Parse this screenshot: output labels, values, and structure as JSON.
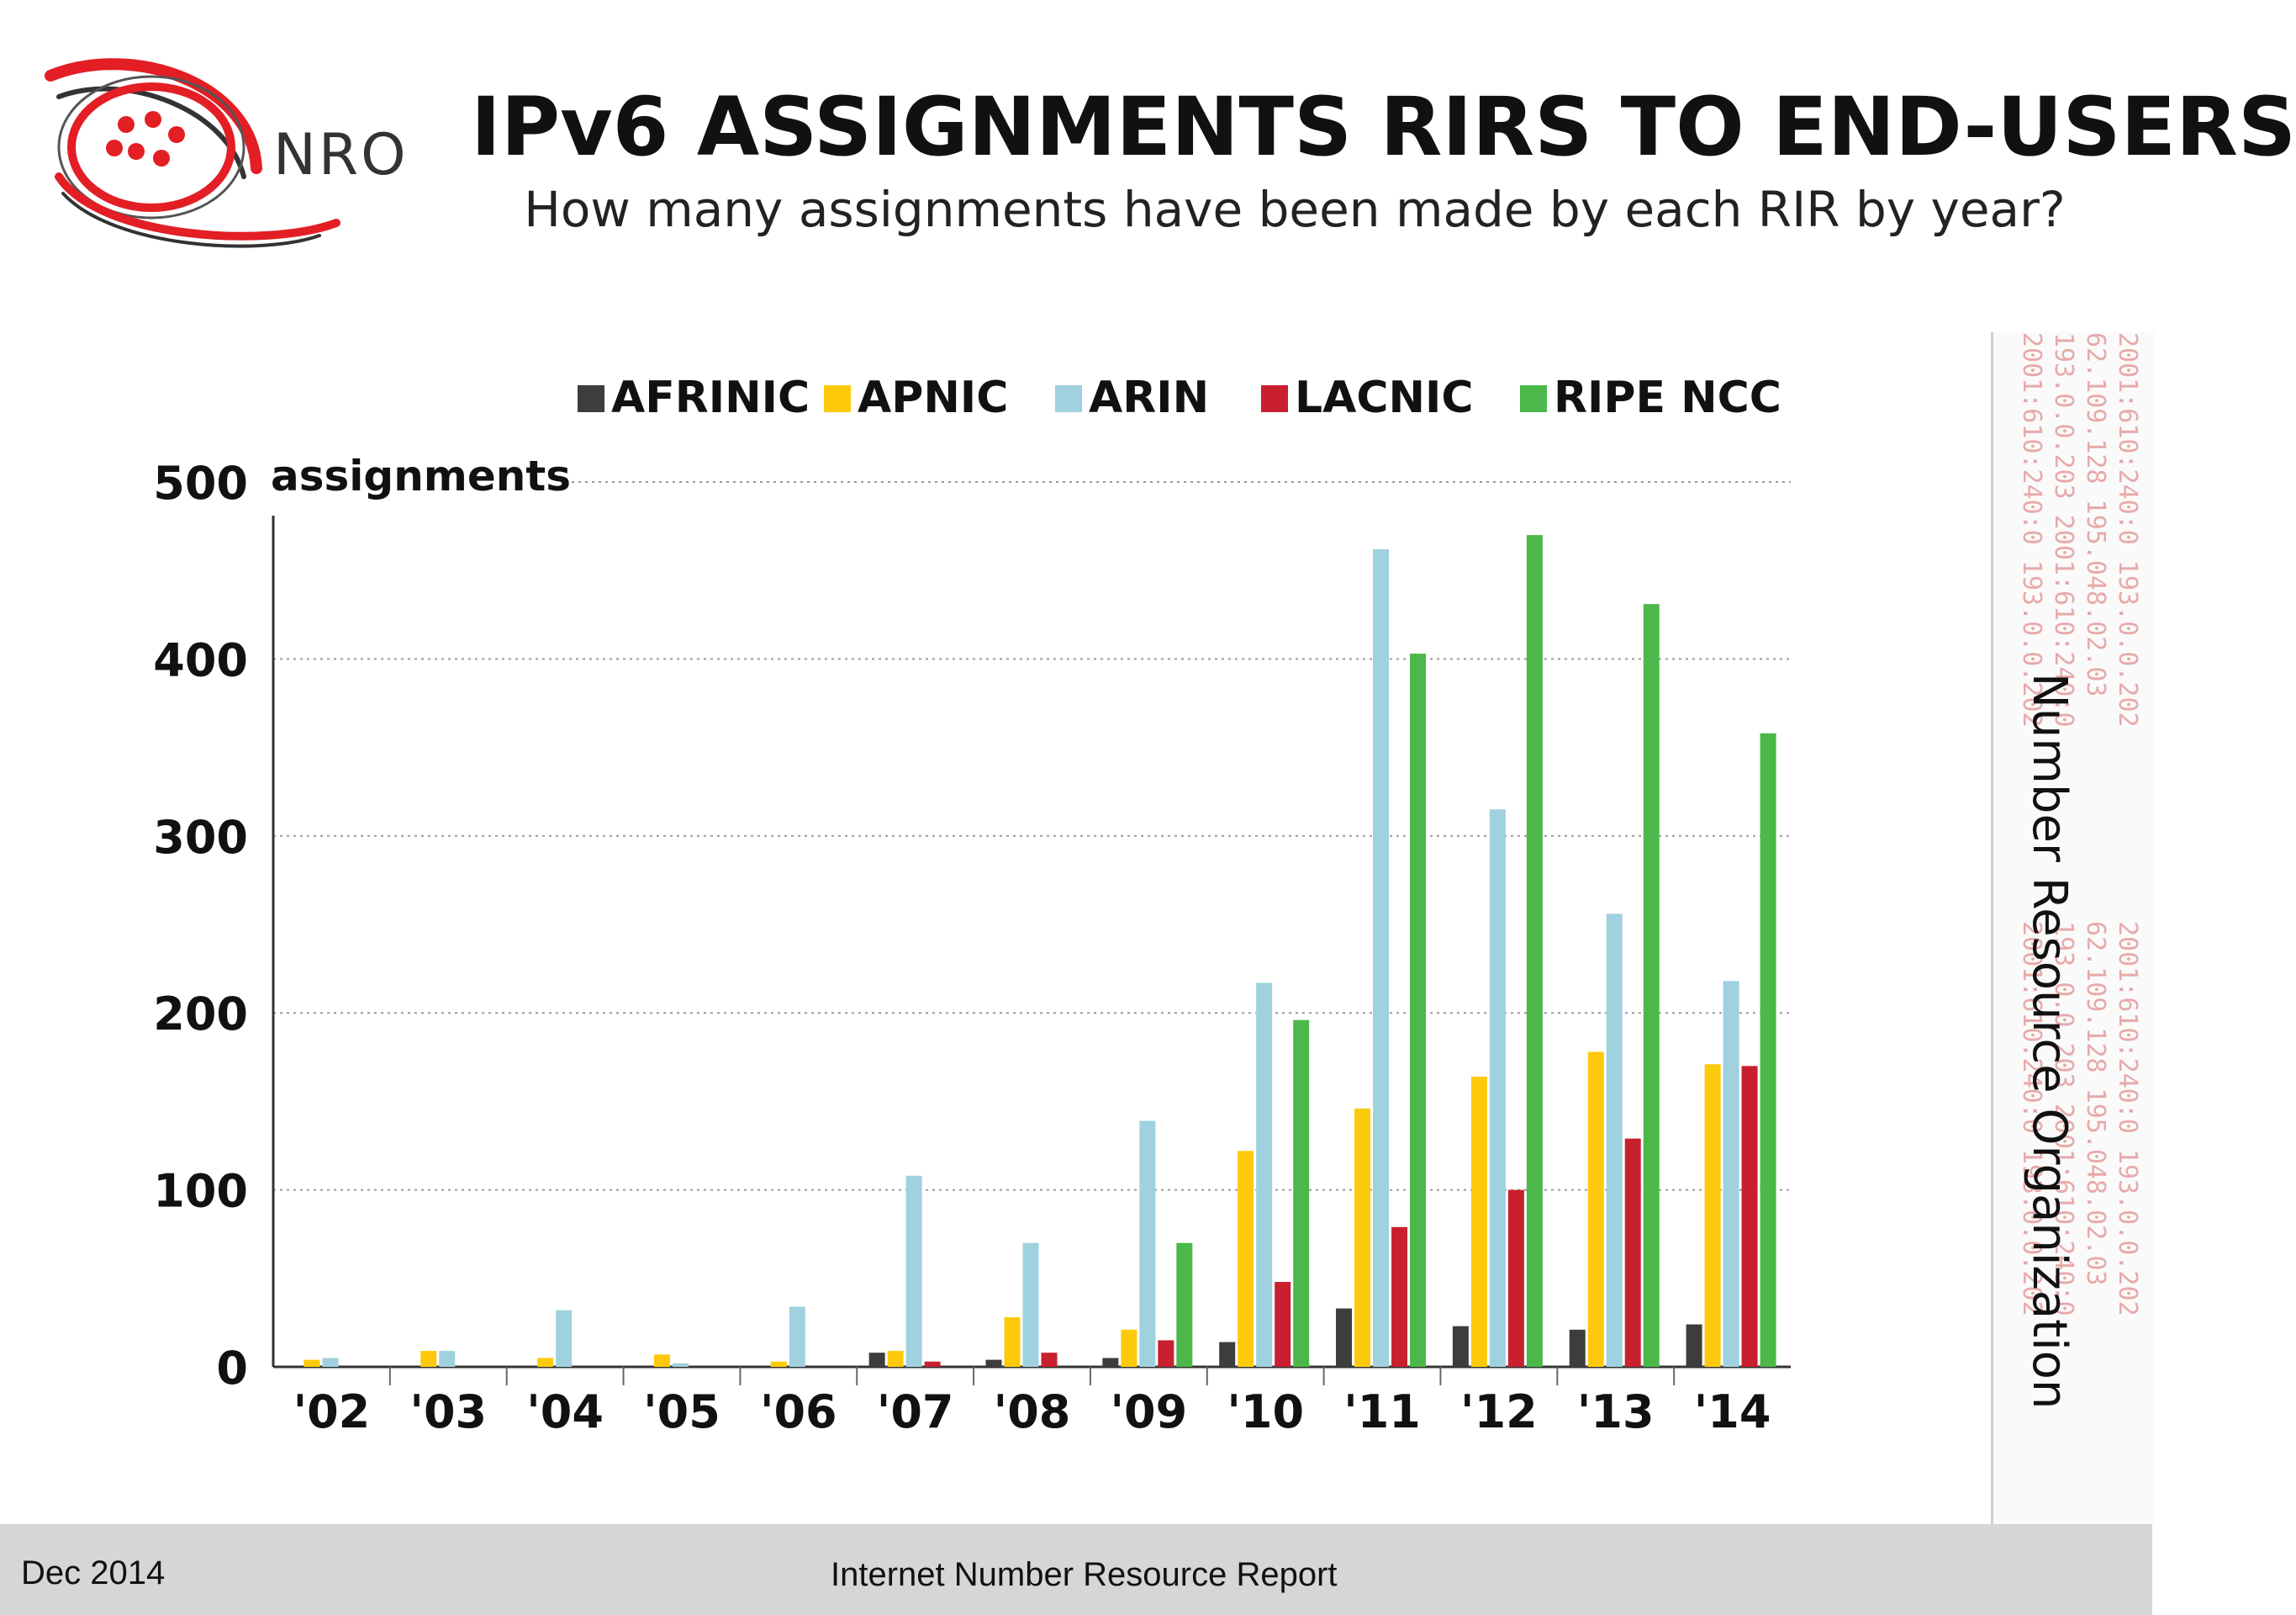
{
  "header": {
    "logo_text": "NRO",
    "title": "IPv6 ASSIGNMENTS RIRS TO END-USERS",
    "subtitle": "How many assignments have been made by each RIR by year?"
  },
  "side_panel": {
    "label": "Number Resource Organization",
    "watermark_lines": [
      "2001:610:240:0  193.0.0.202",
      "62.109.128  195.048.02.03",
      "193.0.0.203  2001:610:240:0",
      "2001:610:240:0  193.0.0.202"
    ]
  },
  "footer": {
    "date": "Dec 2014",
    "report": "Internet Number Resource Report"
  },
  "colors": {
    "AFRINIC": "#3d3d3d",
    "APNIC": "#fcca0a",
    "ARIN": "#9fd1df",
    "LACNIC": "#c8202f",
    "RIPE NCC": "#4cb849",
    "logo_red": "#e31e24"
  },
  "chart_data": {
    "type": "bar",
    "title": "IPv6 ASSIGNMENTS RIRS TO END-USERS",
    "subtitle": "How many assignments have been made by each RIR by year?",
    "ylabel": "assignments",
    "xlabel": "",
    "ylim": [
      0,
      500
    ],
    "yticks": [
      0,
      100,
      200,
      300,
      400,
      500
    ],
    "grid": true,
    "legend": "top",
    "categories": [
      "'02",
      "'03",
      "'04",
      "'05",
      "'06",
      "'07",
      "'08",
      "'09",
      "'10",
      "'11",
      "'12",
      "'13",
      "'14"
    ],
    "series": [
      {
        "name": "AFRINIC",
        "values": [
          0,
          0,
          0,
          0,
          0,
          8,
          4,
          5,
          14,
          33,
          23,
          21,
          24
        ]
      },
      {
        "name": "APNIC",
        "values": [
          4,
          9,
          5,
          7,
          3,
          9,
          28,
          21,
          122,
          146,
          164,
          178,
          171
        ]
      },
      {
        "name": "ARIN",
        "values": [
          5,
          9,
          32,
          2,
          34,
          108,
          70,
          139,
          217,
          462,
          315,
          256,
          218
        ]
      },
      {
        "name": "LACNIC",
        "values": [
          0,
          0,
          0,
          0,
          0,
          3,
          8,
          15,
          48,
          79,
          100,
          129,
          170
        ]
      },
      {
        "name": "RIPE NCC",
        "values": [
          0,
          0,
          0,
          0,
          0,
          0,
          0,
          70,
          196,
          403,
          470,
          431,
          358
        ]
      }
    ]
  }
}
